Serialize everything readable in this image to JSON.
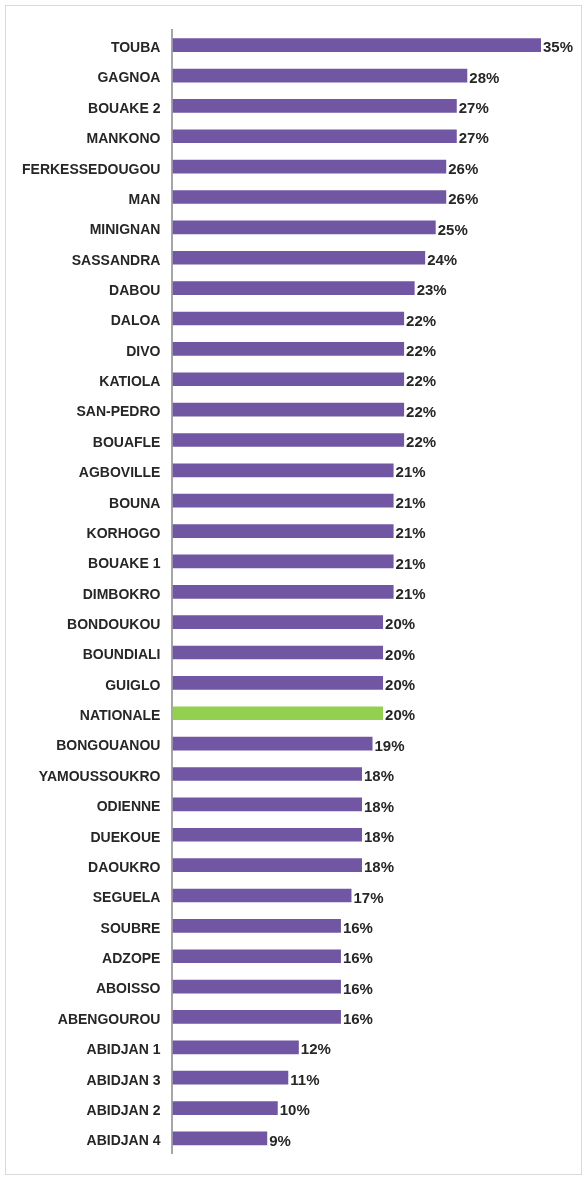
{
  "chart_data": {
    "type": "bar",
    "orientation": "horizontal",
    "categories": [
      "TOUBA",
      "GAGNOA",
      "BOUAKE 2",
      "MANKONO",
      "FERKESSEDOUGOU",
      "MAN",
      "MINIGNAN",
      "SASSANDRA",
      "DABOU",
      "DALOA",
      "DIVO",
      "KATIOLA",
      "SAN-PEDRO",
      "BOUAFLE",
      "AGBOVILLE",
      "BOUNA",
      "KORHOGO",
      "BOUAKE 1",
      "DIMBOKRO",
      "BONDOUKOU",
      "BOUNDIALI",
      "GUIGLO",
      "NATIONALE",
      "BONGOUANOU",
      "YAMOUSSOUKRO",
      "ODIENNE",
      "DUEKOUE",
      "DAOUKRO",
      "SEGUELA",
      "SOUBRE",
      "ADZOPE",
      "ABOISSO",
      "ABENGOUROU",
      "ABIDJAN 1",
      "ABIDJAN 3",
      "ABIDJAN 2",
      "ABIDJAN 4"
    ],
    "values": [
      35,
      28,
      27,
      27,
      26,
      26,
      25,
      24,
      23,
      22,
      22,
      22,
      22,
      22,
      21,
      21,
      21,
      21,
      21,
      20,
      20,
      20,
      20,
      19,
      18,
      18,
      18,
      18,
      17,
      16,
      16,
      16,
      16,
      12,
      11,
      10,
      9
    ],
    "value_labels": [
      "35%",
      "28%",
      "27%",
      "27%",
      "26%",
      "26%",
      "25%",
      "24%",
      "23%",
      "22%",
      "22%",
      "22%",
      "22%",
      "22%",
      "21%",
      "21%",
      "21%",
      "21%",
      "21%",
      "20%",
      "20%",
      "20%",
      "20%",
      "19%",
      "18%",
      "18%",
      "18%",
      "18%",
      "17%",
      "16%",
      "16%",
      "16%",
      "16%",
      "12%",
      "11%",
      "10%",
      "9%"
    ],
    "colors": [
      "#7157a3",
      "#7157a3",
      "#7157a3",
      "#7157a3",
      "#7157a3",
      "#7157a3",
      "#7157a3",
      "#7157a3",
      "#7157a3",
      "#7157a3",
      "#7157a3",
      "#7157a3",
      "#7157a3",
      "#7157a3",
      "#7157a3",
      "#7157a3",
      "#7157a3",
      "#7157a3",
      "#7157a3",
      "#7157a3",
      "#7157a3",
      "#7157a3",
      "#92d050",
      "#7157a3",
      "#7157a3",
      "#7157a3",
      "#7157a3",
      "#7157a3",
      "#7157a3",
      "#7157a3",
      "#7157a3",
      "#7157a3",
      "#7157a3",
      "#7157a3",
      "#7157a3",
      "#7157a3",
      "#7157a3"
    ],
    "legend": false
  }
}
